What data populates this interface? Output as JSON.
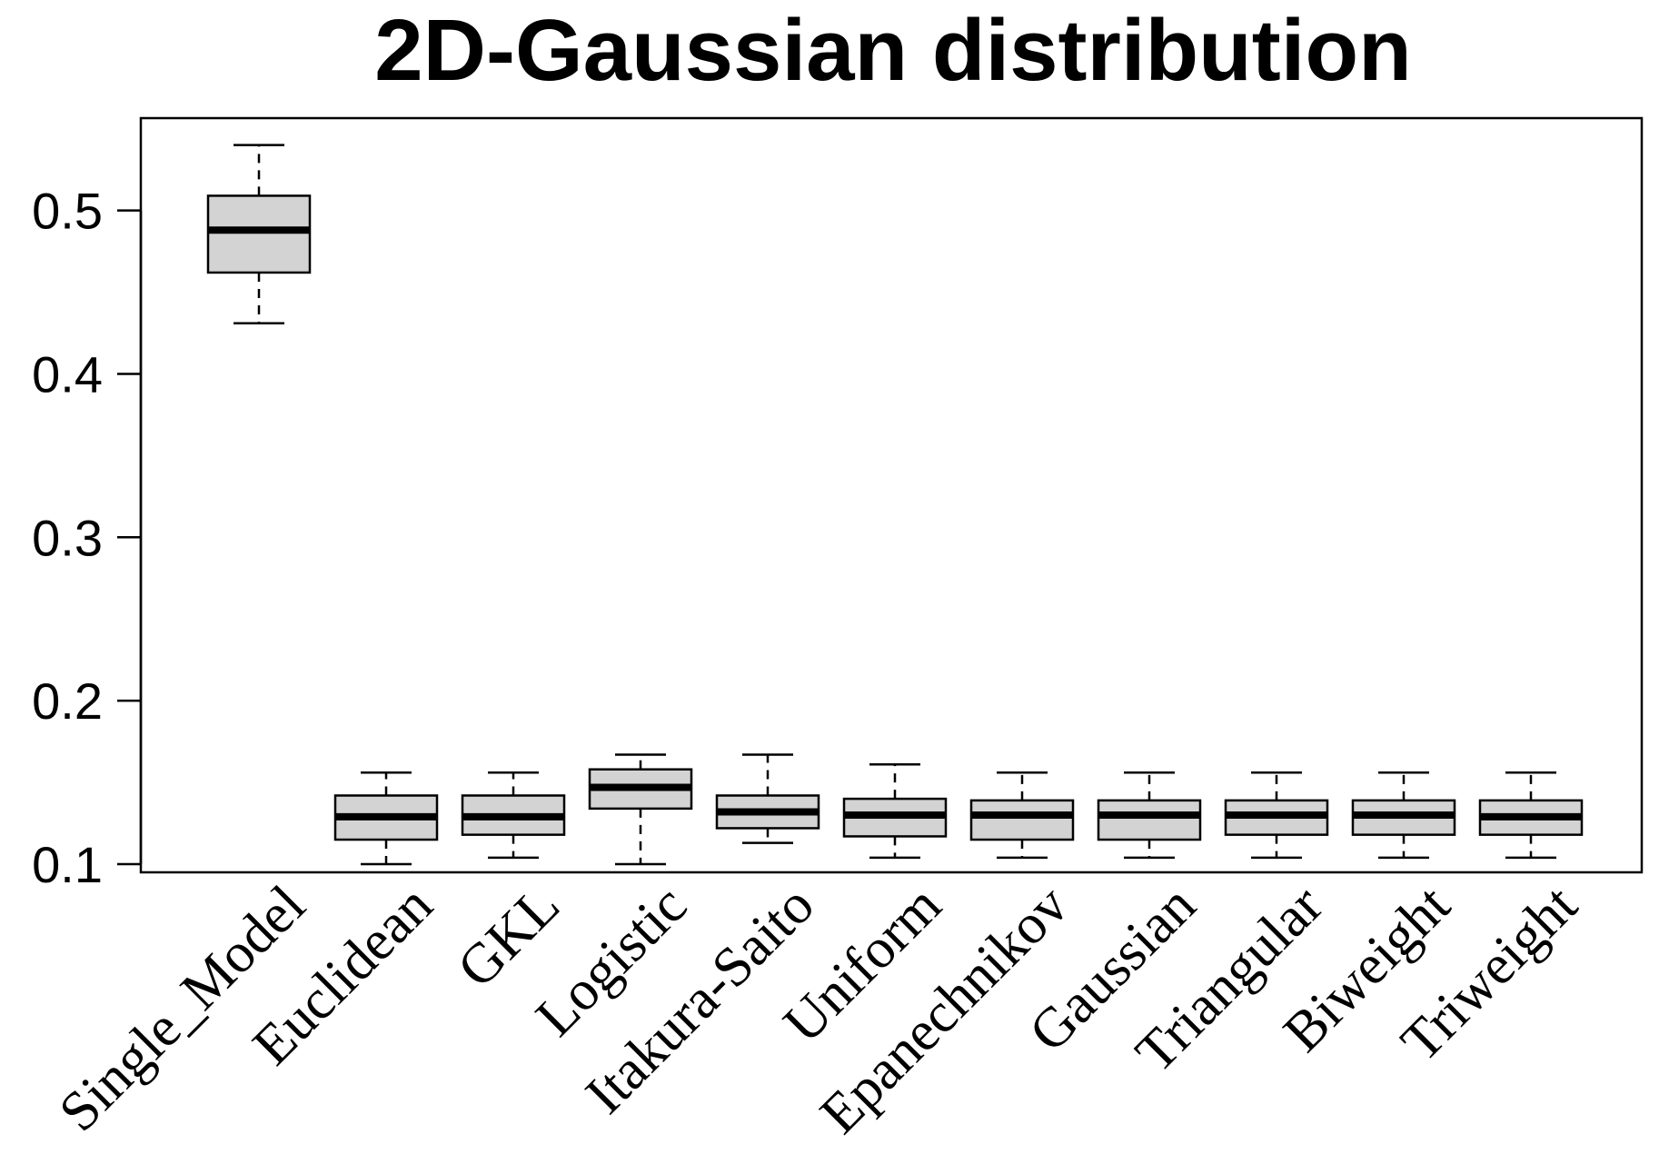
{
  "chart_data": {
    "type": "box",
    "title": "2D-Gaussian distribution",
    "xlabel": "",
    "ylabel": "",
    "ylim": [
      0.095,
      0.5565
    ],
    "yticks": [
      "0.1",
      "0.2",
      "0.3",
      "0.4",
      "0.5"
    ],
    "ytick_values": [
      0.1,
      0.2,
      0.3,
      0.4,
      0.5
    ],
    "grid": false,
    "legend": "none",
    "colors": {
      "box_fill": "#d3d3d3",
      "stroke": "#000000",
      "background": "#ffffff"
    },
    "categories": [
      "Single_Model",
      "Euclidean",
      "GKL",
      "Logistic",
      "Itakura-Saito",
      "Uniform",
      "Epanechnikov",
      "Gaussian",
      "Triangular",
      "Biweight",
      "Triweight"
    ],
    "boxes": [
      {
        "category": "Single_Model",
        "whisker_low": 0.431,
        "q1": 0.462,
        "median": 0.488,
        "q3": 0.509,
        "whisker_high": 0.54
      },
      {
        "category": "Euclidean",
        "whisker_low": 0.1,
        "q1": 0.115,
        "median": 0.129,
        "q3": 0.142,
        "whisker_high": 0.156
      },
      {
        "category": "GKL",
        "whisker_low": 0.104,
        "q1": 0.118,
        "median": 0.129,
        "q3": 0.142,
        "whisker_high": 0.156
      },
      {
        "category": "Logistic",
        "whisker_low": 0.1,
        "q1": 0.134,
        "median": 0.147,
        "q3": 0.158,
        "whisker_high": 0.167
      },
      {
        "category": "Itakura-Saito",
        "whisker_low": 0.113,
        "q1": 0.122,
        "median": 0.132,
        "q3": 0.142,
        "whisker_high": 0.167
      },
      {
        "category": "Uniform",
        "whisker_low": 0.104,
        "q1": 0.117,
        "median": 0.13,
        "q3": 0.14,
        "whisker_high": 0.161
      },
      {
        "category": "Epanechnikov",
        "whisker_low": 0.104,
        "q1": 0.115,
        "median": 0.13,
        "q3": 0.139,
        "whisker_high": 0.156
      },
      {
        "category": "Gaussian",
        "whisker_low": 0.104,
        "q1": 0.115,
        "median": 0.13,
        "q3": 0.139,
        "whisker_high": 0.156
      },
      {
        "category": "Triangular",
        "whisker_low": 0.104,
        "q1": 0.118,
        "median": 0.13,
        "q3": 0.139,
        "whisker_high": 0.156
      },
      {
        "category": "Biweight",
        "whisker_low": 0.104,
        "q1": 0.118,
        "median": 0.13,
        "q3": 0.139,
        "whisker_high": 0.156
      },
      {
        "category": "Triweight",
        "whisker_low": 0.104,
        "q1": 0.118,
        "median": 0.129,
        "q3": 0.139,
        "whisker_high": 0.156
      }
    ]
  }
}
